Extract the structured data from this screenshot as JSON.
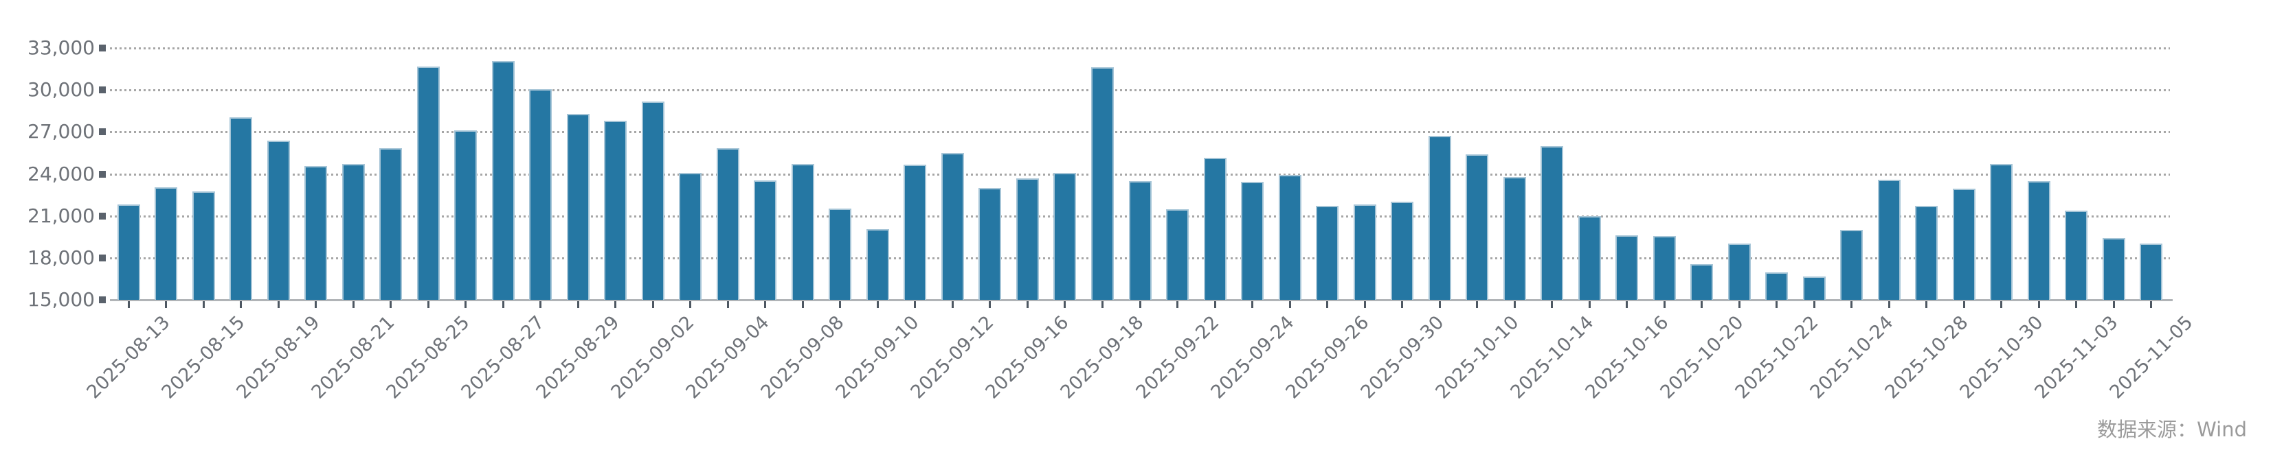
{
  "chart_data": {
    "type": "bar",
    "title": "",
    "xlabel": "",
    "ylabel": "",
    "categories": [
      "2025-08-13",
      "2025-08-14",
      "2025-08-15",
      "2025-08-18",
      "2025-08-19",
      "2025-08-20",
      "2025-08-21",
      "2025-08-22",
      "2025-08-25",
      "2025-08-26",
      "2025-08-27",
      "2025-08-28",
      "2025-08-29",
      "2025-09-01",
      "2025-09-02",
      "2025-09-03",
      "2025-09-04",
      "2025-09-05",
      "2025-09-08",
      "2025-09-09",
      "2025-09-10",
      "2025-09-11",
      "2025-09-12",
      "2025-09-15",
      "2025-09-16",
      "2025-09-17",
      "2025-09-18",
      "2025-09-19",
      "2025-09-22",
      "2025-09-23",
      "2025-09-24",
      "2025-09-25",
      "2025-09-26",
      "2025-09-29",
      "2025-09-30",
      "2025-10-09",
      "2025-10-10",
      "2025-10-13",
      "2025-10-14",
      "2025-10-15",
      "2025-10-16",
      "2025-10-17",
      "2025-10-20",
      "2025-10-21",
      "2025-10-22",
      "2025-10-23",
      "2025-10-24",
      "2025-10-27",
      "2025-10-28",
      "2025-10-29",
      "2025-10-30",
      "2025-10-31",
      "2025-11-03",
      "2025-11-04",
      "2025-11-05"
    ],
    "values": [
      21800,
      23050,
      22750,
      28050,
      26400,
      24550,
      24700,
      25850,
      31700,
      27100,
      32050,
      30050,
      28300,
      27800,
      29150,
      24050,
      25850,
      23550,
      24700,
      21500,
      20050,
      24650,
      25500,
      23000,
      23700,
      24050,
      31650,
      23500,
      21450,
      25150,
      23450,
      23950,
      21700,
      21800,
      22000,
      26700,
      25400,
      23800,
      26000,
      21000,
      19600,
      19550,
      17550,
      19000,
      16950,
      16650,
      20000,
      23600,
      21700,
      22950,
      24700,
      23500,
      21400,
      19400,
      19000
    ],
    "ylim": [
      15000,
      33000
    ],
    "ytick_step": 3000,
    "ytick_labels": [
      "15,000",
      "18,000",
      "21,000",
      "24,000",
      "27,000",
      "30,000",
      "33,000"
    ],
    "xtick_label_every": 2,
    "grid": "horizontal-dotted",
    "legend_position": "none"
  },
  "source": {
    "label": "数据来源：Wind"
  },
  "colors": {
    "bar_fill": "#2577a3",
    "bar_edge": "#a6c5d7",
    "grid": "#a6a6a6",
    "axis_line": "#b1b4b7",
    "tick_mark": "#4e5862",
    "axis_text": "#6e7278",
    "source_text": "#9b9b9b",
    "background": "#ffffff"
  }
}
